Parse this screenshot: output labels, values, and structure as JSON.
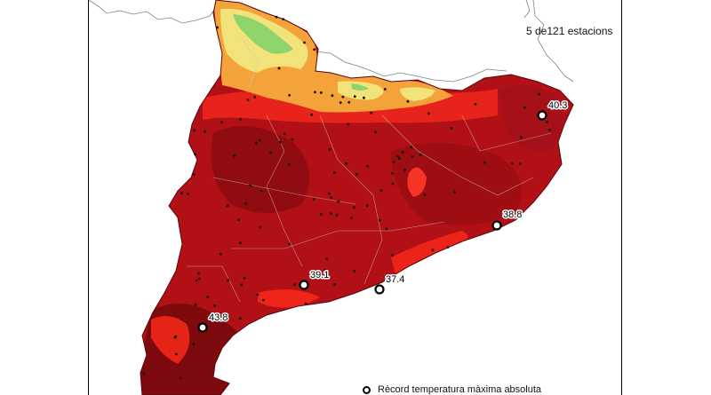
{
  "header": {
    "station_count_text": "5 de121 estacions"
  },
  "legend": {
    "label": "Rècord temperatura màxima absoluta"
  },
  "records": [
    {
      "value": "40.3"
    },
    {
      "value": "38.8"
    },
    {
      "value": "39.1"
    },
    {
      "value": "37.4"
    },
    {
      "value": "43.8"
    }
  ],
  "colors": {
    "region_base": "#b11116",
    "region_dark": "#7f0a0e",
    "region_bright": "#ff2a1a",
    "mountain_orange": "#f3a33a",
    "mountain_yellow": "#f2e27a",
    "mountain_green": "#8fd46b",
    "border": "#808080"
  }
}
